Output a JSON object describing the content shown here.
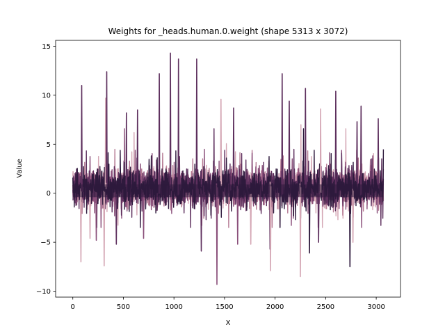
{
  "chart_data": {
    "type": "line",
    "title": "Weights for _heads.human.0.weight (shape 5313 x 3072)",
    "xlabel": "X",
    "ylabel": "Value",
    "xlim": [
      -170,
      3240
    ],
    "ylim": [
      -10.6,
      15.6
    ],
    "xticks": [
      0,
      500,
      1000,
      1500,
      2000,
      2500,
      3000
    ],
    "xtick_labels": [
      "0",
      "500",
      "1000",
      "1500",
      "2000",
      "2500",
      "3000"
    ],
    "yticks": [
      -10,
      -5,
      0,
      5,
      10,
      15
    ],
    "ytick_labels": [
      "−10",
      "−5",
      "0",
      "5",
      "10",
      "15"
    ],
    "grid": false,
    "legend": "none",
    "x_range": [
      0,
      3071
    ],
    "series_colors": [
      "#d4a6b4",
      "#b57a93",
      "#8a4f7a",
      "#5d2f5d",
      "#2e1a3d"
    ],
    "spikes": [
      {
        "x": 80,
        "y": -7.0,
        "color": "#d4a6b4"
      },
      {
        "x": 88,
        "y": 11.0,
        "color": "#5d2f5d"
      },
      {
        "x": 170,
        "y": -4.6,
        "color": "#d4a6b4"
      },
      {
        "x": 232,
        "y": -4.8,
        "color": "#8a4f7a"
      },
      {
        "x": 310,
        "y": -7.4,
        "color": "#d4a6b4"
      },
      {
        "x": 325,
        "y": 9.7,
        "color": "#d4a6b4"
      },
      {
        "x": 335,
        "y": 12.4,
        "color": "#5d2f5d"
      },
      {
        "x": 430,
        "y": -5.2,
        "color": "#5d2f5d"
      },
      {
        "x": 530,
        "y": 8.2,
        "color": "#5d2f5d"
      },
      {
        "x": 640,
        "y": 8.5,
        "color": "#5d2f5d"
      },
      {
        "x": 700,
        "y": -4.6,
        "color": "#8a4f7a"
      },
      {
        "x": 855,
        "y": 12.2,
        "color": "#5d2f5d"
      },
      {
        "x": 965,
        "y": 14.3,
        "color": "#5d2f5d"
      },
      {
        "x": 1045,
        "y": 13.7,
        "color": "#5d2f5d"
      },
      {
        "x": 1225,
        "y": 13.7,
        "color": "#5d2f5d"
      },
      {
        "x": 1270,
        "y": -5.9,
        "color": "#5d2f5d"
      },
      {
        "x": 1425,
        "y": -9.3,
        "color": "#8a4f7a"
      },
      {
        "x": 1465,
        "y": 9.6,
        "color": "#d4a6b4"
      },
      {
        "x": 1590,
        "y": 8.7,
        "color": "#5d2f5d"
      },
      {
        "x": 1630,
        "y": -5.2,
        "color": "#8a4f7a"
      },
      {
        "x": 1760,
        "y": -5.2,
        "color": "#d4a6b4"
      },
      {
        "x": 1950,
        "y": -5.7,
        "color": "#5d2f5d"
      },
      {
        "x": 1955,
        "y": -7.9,
        "color": "#d4a6b4"
      },
      {
        "x": 2070,
        "y": 12.2,
        "color": "#5d2f5d"
      },
      {
        "x": 2140,
        "y": 9.4,
        "color": "#5d2f5d"
      },
      {
        "x": 2250,
        "y": -8.5,
        "color": "#d4a6b4"
      },
      {
        "x": 2300,
        "y": 10.7,
        "color": "#5d2f5d"
      },
      {
        "x": 2340,
        "y": -6.1,
        "color": "#2e1a3d"
      },
      {
        "x": 2430,
        "y": -5.0,
        "color": "#5d2f5d"
      },
      {
        "x": 2450,
        "y": 8.6,
        "color": "#d4a6b4"
      },
      {
        "x": 2600,
        "y": 10.4,
        "color": "#5d2f5d"
      },
      {
        "x": 2740,
        "y": -7.5,
        "color": "#2e1a3d"
      },
      {
        "x": 2770,
        "y": -5.0,
        "color": "#d4a6b4"
      },
      {
        "x": 2810,
        "y": 7.3,
        "color": "#5d2f5d"
      },
      {
        "x": 2850,
        "y": 8.9,
        "color": "#5d2f5d"
      },
      {
        "x": 3020,
        "y": 7.6,
        "color": "#5d2f5d"
      }
    ]
  }
}
